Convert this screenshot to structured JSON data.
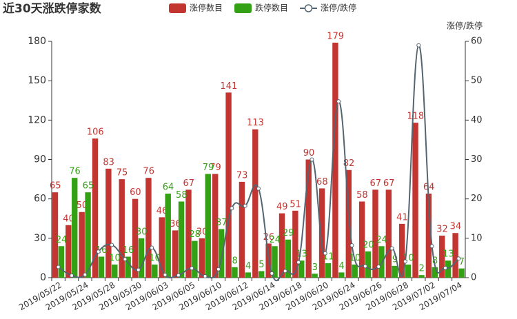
{
  "chart_data": {
    "type": "bar_line",
    "title": "近30天涨跌停家数",
    "y2_label": "涨停/跌停",
    "categories": [
      "2019/05/22",
      null,
      "2019/05/24",
      null,
      "2019/05/28",
      null,
      "2019/05/30",
      null,
      "2019/06/03",
      null,
      "2019/06/05",
      null,
      "2019/06/10",
      null,
      "2019/06/12",
      null,
      "2019/06/14",
      null,
      "2019/06/18",
      null,
      "2019/06/20",
      null,
      "2019/06/24",
      null,
      "2019/06/26",
      null,
      "2019/06/28",
      null,
      "2019/07/02",
      null,
      "2019/07/04"
    ],
    "series": [
      {
        "name": "涨停数目",
        "type": "bar",
        "color": "#c23531",
        "values": [
          65,
          40,
          50,
          106,
          83,
          75,
          60,
          76,
          46,
          36,
          67,
          30,
          79,
          141,
          73,
          113,
          26,
          49,
          51,
          90,
          68,
          179,
          82,
          58,
          67,
          67,
          41,
          118,
          64,
          32,
          34
        ]
      },
      {
        "name": "跌停数目",
        "type": "bar",
        "color": "#34a115",
        "values": [
          24,
          76,
          65,
          16,
          10,
          16,
          30,
          10,
          64,
          58,
          28,
          79,
          37,
          8,
          4,
          5,
          24,
          29,
          13,
          3,
          11,
          4,
          10,
          20,
          24,
          9,
          10,
          2,
          8,
          13,
          7
        ]
      },
      {
        "name": "涨停/跌停",
        "type": "line",
        "axis": "y2",
        "color": "#546570",
        "values": [
          2.71,
          0.53,
          0.77,
          6.63,
          8.3,
          4.69,
          2,
          7.6,
          0.72,
          0.62,
          2.39,
          0.38,
          2.14,
          17.63,
          18.25,
          22.6,
          1.08,
          1.69,
          3.92,
          30,
          6.18,
          44.75,
          8.2,
          2.9,
          2.79,
          7.44,
          4.1,
          59,
          8,
          2.46,
          4.86
        ]
      }
    ],
    "ylim": [
      0,
      180
    ],
    "yticks": [
      0,
      30,
      60,
      90,
      120,
      150,
      180
    ],
    "y2lim": [
      0,
      60
    ],
    "y2ticks": [
      0,
      10,
      20,
      30,
      40,
      50,
      60
    ]
  }
}
